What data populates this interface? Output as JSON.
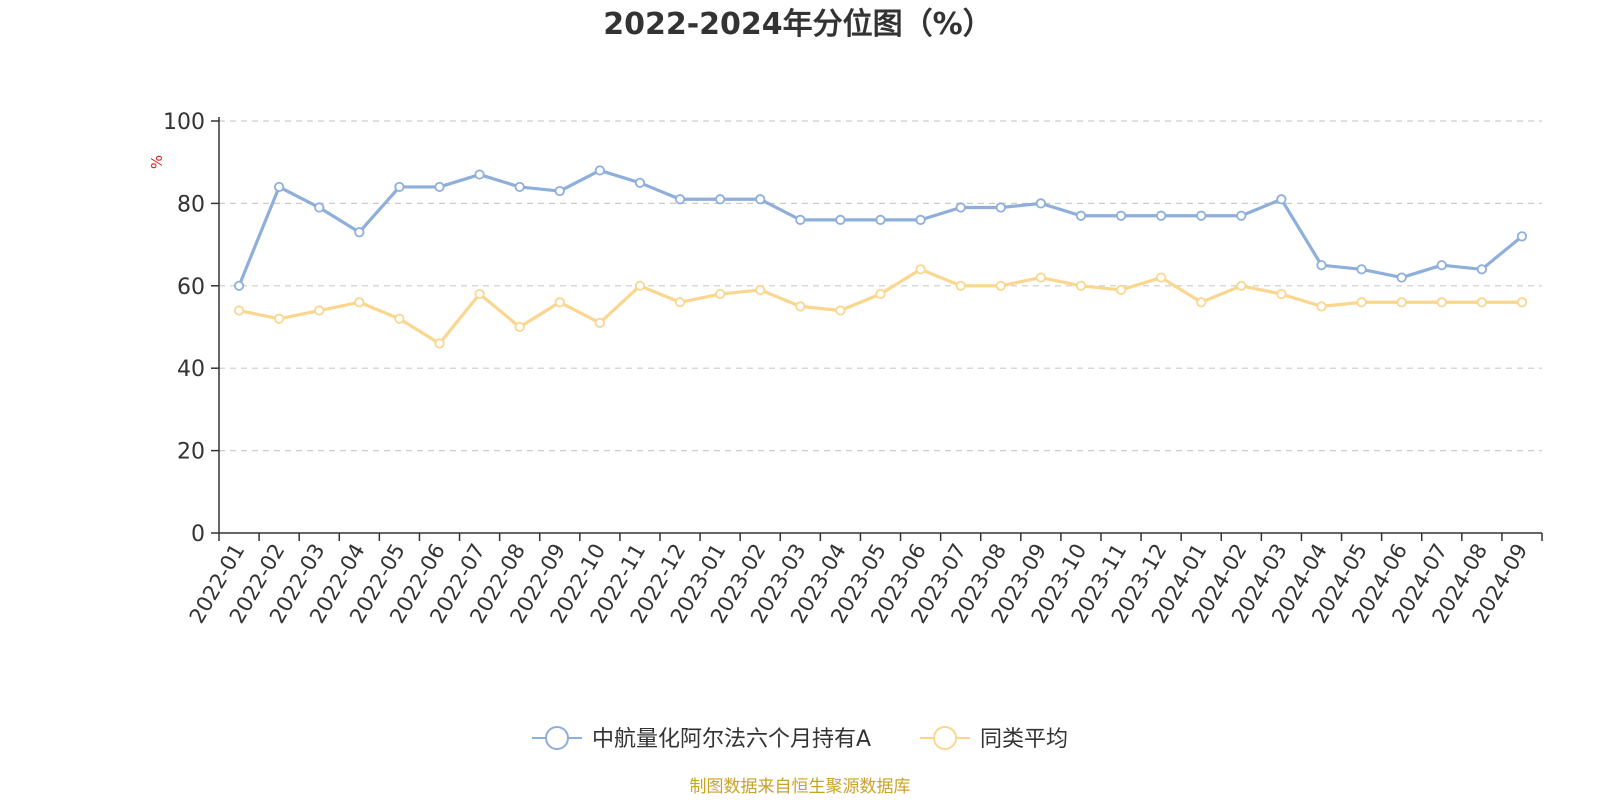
{
  "chart_data": {
    "type": "line",
    "title": "2022-2024年分位图（%）",
    "ylabel": "%",
    "ylim": [
      0,
      100
    ],
    "yticks": [
      "0",
      "20",
      "40",
      "60",
      "80",
      "100"
    ],
    "grid": true,
    "legend_position": "bottom-center",
    "categories": [
      "2022-01",
      "2022-02",
      "2022-03",
      "2022-04",
      "2022-05",
      "2022-06",
      "2022-07",
      "2022-08",
      "2022-09",
      "2022-10",
      "2022-11",
      "2022-12",
      "2023-01",
      "2023-02",
      "2023-03",
      "2023-04",
      "2023-05",
      "2023-06",
      "2023-07",
      "2023-08",
      "2023-09",
      "2023-10",
      "2023-11",
      "2023-12",
      "2024-01",
      "2024-02",
      "2024-03",
      "2024-04",
      "2024-05",
      "2024-06",
      "2024-07",
      "2024-08",
      "2024-09"
    ],
    "series": [
      {
        "name": "中航量化阿尔法六个月持有A",
        "color": "#8eaedb",
        "values": [
          60,
          84,
          79,
          73,
          84,
          84,
          87,
          84,
          83,
          88,
          85,
          81,
          81,
          81,
          76,
          76,
          76,
          76,
          79,
          79,
          80,
          77,
          77,
          77,
          77,
          77,
          81,
          65,
          64,
          62,
          65,
          64,
          72
        ]
      },
      {
        "name": "同类平均",
        "color": "#fad68e",
        "values": [
          54,
          52,
          54,
          56,
          52,
          46,
          58,
          50,
          56,
          51,
          60,
          56,
          58,
          59,
          55,
          54,
          58,
          64,
          60,
          60,
          62,
          60,
          59,
          62,
          56,
          60,
          58,
          55,
          56,
          56,
          56,
          56,
          56
        ]
      }
    ]
  },
  "source_text": "制图数据来自恒生聚源数据库",
  "source_color": "#c9a227",
  "axis_color": "#333333",
  "grid_color": "#cccccc"
}
